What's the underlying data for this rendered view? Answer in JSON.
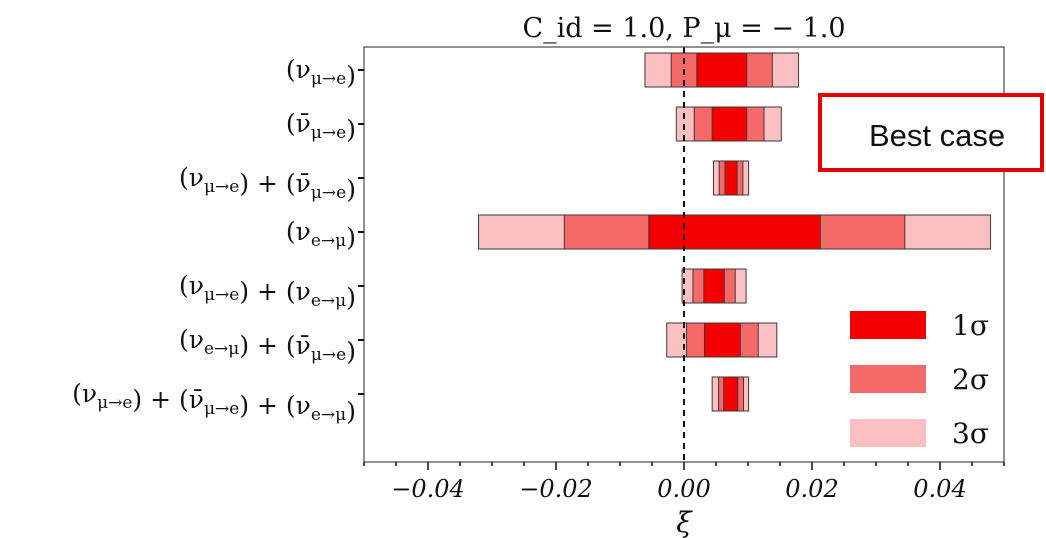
{
  "chart_data": {
    "type": "bar",
    "title": "C_id = 1.0,  P_μ = − 1.0",
    "xlabel": "ξ",
    "xlim": [
      -0.05,
      0.05
    ],
    "xticks": [
      -0.04,
      -0.02,
      0.0,
      0.02,
      0.04
    ],
    "xtick_labels": [
      "−0.04",
      "−0.02",
      "0.00",
      "0.02",
      "0.04"
    ],
    "reference_line": 0.0,
    "legend_position": "lower-right",
    "colors": {
      "1σ": "#f50000",
      "2σ": "#f56969",
      "3σ": "#fcbfc2"
    },
    "legend": [
      "1σ",
      "2σ",
      "3σ"
    ],
    "annotation": "Best case",
    "categories": [
      "(ν_{μ→e})",
      "(ν̄_{μ→e})",
      "(ν_{μ→e}) + (ν̄_{μ→e})",
      "(ν_{e→μ})",
      "(ν_{μ→e}) + (ν_{e→μ})",
      "(ν_{e→μ}) + (ν̄_{μ→e})",
      "(ν_{μ→e}) + (ν̄_{μ→e}) + (ν_{e→μ})"
    ],
    "series": [
      {
        "name": "3σ",
        "low": [
          -0.0061,
          -0.0012,
          0.0046,
          -0.0321,
          -0.0003,
          -0.0027,
          0.0044
        ],
        "high": [
          0.0179,
          0.0152,
          0.0101,
          0.0479,
          0.0097,
          0.0145,
          0.0101
        ]
      },
      {
        "name": "2σ",
        "low": [
          -0.002,
          0.0016,
          0.0055,
          -0.0187,
          0.0014,
          0.0004,
          0.0054
        ],
        "high": [
          0.0138,
          0.0125,
          0.0092,
          0.0345,
          0.008,
          0.0116,
          0.0093
        ]
      },
      {
        "name": "1σ",
        "low": [
          0.002,
          0.0044,
          0.0064,
          -0.0055,
          0.0031,
          0.0032,
          0.0062
        ],
        "high": [
          0.0098,
          0.0098,
          0.0083,
          0.0213,
          0.0063,
          0.0088,
          0.0084
        ]
      }
    ]
  }
}
